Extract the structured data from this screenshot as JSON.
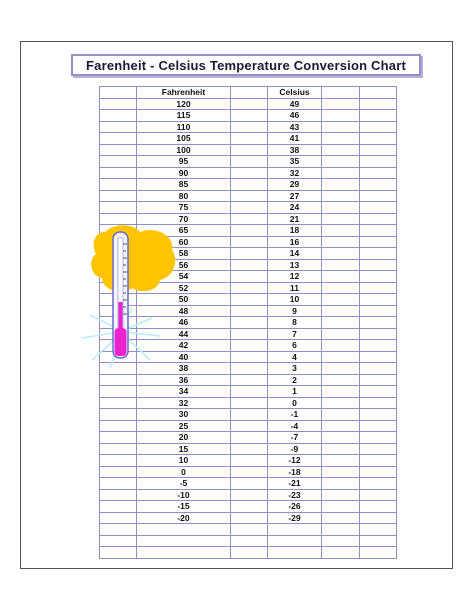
{
  "title": "Farenheit - Celsius Temperature Conversion Chart",
  "table": {
    "headers": [
      "Fahrenheit",
      "Celsius"
    ],
    "rows": [
      [
        "120",
        "49"
      ],
      [
        "115",
        "46"
      ],
      [
        "110",
        "43"
      ],
      [
        "105",
        "41"
      ],
      [
        "100",
        "38"
      ],
      [
        "95",
        "35"
      ],
      [
        "90",
        "32"
      ],
      [
        "85",
        "29"
      ],
      [
        "80",
        "27"
      ],
      [
        "75",
        "24"
      ],
      [
        "70",
        "21"
      ],
      [
        "65",
        "18"
      ],
      [
        "60",
        "16"
      ],
      [
        "58",
        "14"
      ],
      [
        "56",
        "13"
      ],
      [
        "54",
        "12"
      ],
      [
        "52",
        "11"
      ],
      [
        "50",
        "10"
      ],
      [
        "48",
        "9"
      ],
      [
        "46",
        "8"
      ],
      [
        "44",
        "7"
      ],
      [
        "42",
        "6"
      ],
      [
        "40",
        "4"
      ],
      [
        "38",
        "3"
      ],
      [
        "36",
        "2"
      ],
      [
        "34",
        "1"
      ],
      [
        "32",
        "0"
      ],
      [
        "30",
        "-1"
      ],
      [
        "25",
        "-4"
      ],
      [
        "20",
        "-7"
      ],
      [
        "15",
        "-9"
      ],
      [
        "10",
        "-12"
      ],
      [
        "0",
        "-18"
      ],
      [
        "-5",
        "-21"
      ],
      [
        "-10",
        "-23"
      ],
      [
        "-15",
        "-26"
      ],
      [
        "-20",
        "-29"
      ]
    ]
  },
  "colors": {
    "grid": "#8f8fc8",
    "title_border": "#9a8fc4",
    "sun": "#ffc400",
    "mercury": "#ee22cc"
  },
  "icons": {
    "illustration": "thermometer-sun-icon"
  }
}
